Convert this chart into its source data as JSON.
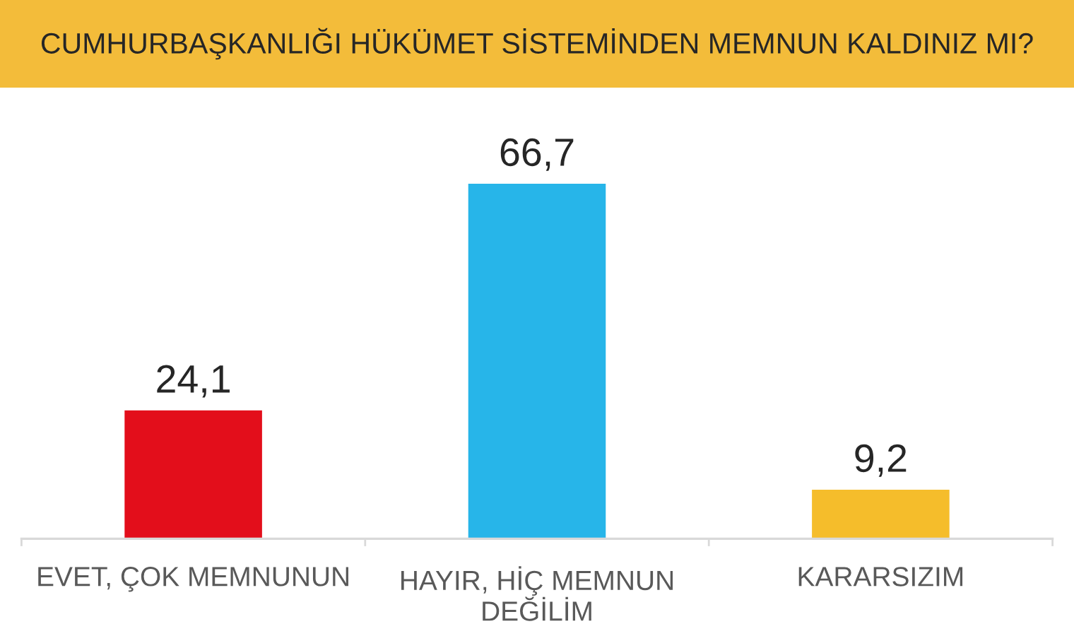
{
  "chart_data": {
    "type": "bar",
    "title": "CUMHURBAŞKANLIĞI HÜKÜMET SİSTEMİNDEN MEMNUN KALDINIZ MI?",
    "categories": [
      "EVET, ÇOK MEMNUNUN",
      "HAYIR, HİÇ MEMNUN\nDEĞİLİM",
      "KARARSIZIM"
    ],
    "values": [
      24.1,
      66.7,
      9.2
    ],
    "colors": [
      "#e30e1b",
      "#27b5e9",
      "#f5bd2b"
    ],
    "value_labels": [
      "24,1",
      "66,7",
      "9,2"
    ],
    "tick_labels": "x"
  }
}
